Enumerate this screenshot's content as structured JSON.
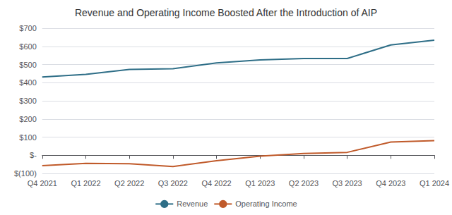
{
  "chart_data": {
    "type": "line",
    "title": "Revenue and Operating Income Boosted After the Introduction of AIP",
    "categories": [
      "Q4 2021",
      "Q1 2022",
      "Q2 2022",
      "Q3 2022",
      "Q4 2022",
      "Q1 2023",
      "Q2 2023",
      "Q3 2023",
      "Q4 2023",
      "Q1 2024"
    ],
    "series": [
      {
        "name": "Revenue",
        "color": "#2e6e87",
        "values": [
          431,
          446,
          473,
          477,
          509,
          525,
          533,
          533,
          608,
          634
        ]
      },
      {
        "name": "Operating Income",
        "color": "#c05a2a",
        "values": [
          -57,
          -45,
          -47,
          -62,
          -30,
          -5,
          10,
          16,
          73,
          81
        ]
      }
    ],
    "ylim": [
      -100,
      700
    ],
    "yticks": [
      {
        "value": -100,
        "label": "$(100)"
      },
      {
        "value": 0,
        "label": "$-"
      },
      {
        "value": 100,
        "label": "$100"
      },
      {
        "value": 200,
        "label": "$200"
      },
      {
        "value": 300,
        "label": "$300"
      },
      {
        "value": 400,
        "label": "$400"
      },
      {
        "value": 500,
        "label": "$500"
      },
      {
        "value": 600,
        "label": "$600"
      },
      {
        "value": 700,
        "label": "$700"
      }
    ],
    "grid": true,
    "legend": "bottom"
  }
}
